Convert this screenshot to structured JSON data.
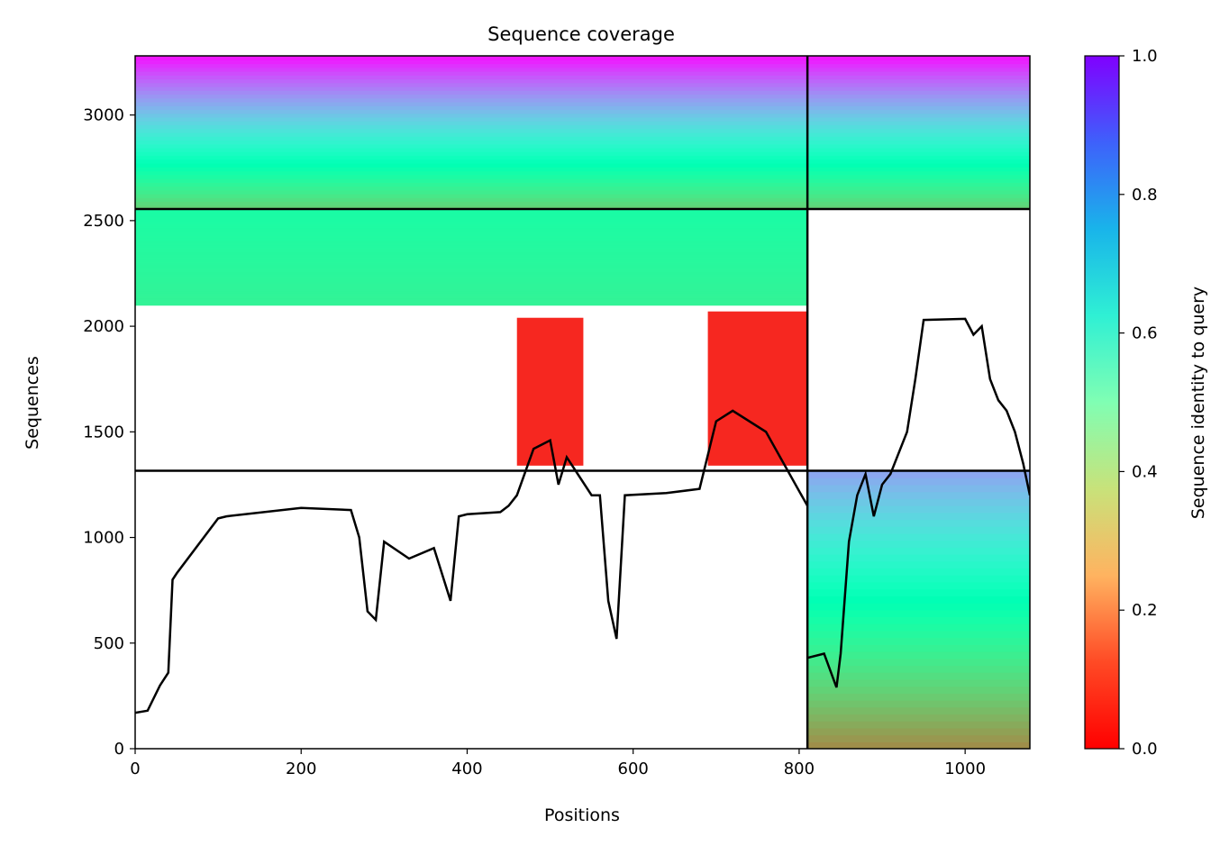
{
  "chart_data": {
    "type": "heatmap",
    "title": "Sequence coverage",
    "xlabel": "Positions",
    "ylabel": "Sequences",
    "xlim": [
      0,
      1078
    ],
    "ylim": [
      0,
      3280
    ],
    "x_ticks": [
      0,
      200,
      400,
      600,
      800,
      1000
    ],
    "y_ticks": [
      0,
      500,
      1000,
      1500,
      2000,
      2500,
      3000
    ],
    "colormap": "rainbow_r",
    "colorbar": {
      "label": "Sequence identity to query",
      "range": [
        0,
        1
      ],
      "ticks": [
        "0.0",
        "0.2",
        "0.4",
        "0.6",
        "0.8",
        "1.0"
      ]
    },
    "separator_lines": {
      "vertical_x": [
        810
      ],
      "horizontal_y": [
        1316,
        2555
      ]
    },
    "blocks": [
      {
        "x0": 0,
        "x1": 810,
        "y0": 2555,
        "y1": 3280,
        "identity_top": 0.98,
        "identity_bottom": 0.3
      },
      {
        "x0": 810,
        "x1": 1078,
        "y0": 2555,
        "y1": 3280,
        "identity_top": 0.98,
        "identity_bottom": 0.3
      },
      {
        "x0": 0,
        "x1": 810,
        "y0": 2100,
        "y1": 2555,
        "identity_top": 0.45,
        "identity_bottom": 0.4
      },
      {
        "x0": 810,
        "x1": 1078,
        "y0": 0,
        "y1": 1316,
        "identity_top": 0.78,
        "identity_bottom": 0.18
      }
    ],
    "red_clusters": [
      {
        "x0": 460,
        "x1": 540,
        "y0": 1340,
        "y1": 2040,
        "identity": 0.02
      },
      {
        "x0": 690,
        "x1": 810,
        "y0": 1340,
        "y1": 2070,
        "identity": 0.02
      }
    ],
    "coverage_line": {
      "segment_1": {
        "x": [
          0,
          15,
          30,
          40,
          45,
          50,
          100,
          110,
          200,
          260,
          270,
          280,
          290,
          300,
          330,
          360,
          380,
          390,
          400,
          440,
          450,
          460,
          480,
          500,
          510,
          520,
          550,
          560,
          570,
          580,
          590,
          640,
          680,
          700,
          720,
          760,
          810
        ],
        "y": [
          170,
          180,
          300,
          360,
          800,
          830,
          1090,
          1100,
          1140,
          1130,
          1000,
          650,
          610,
          980,
          900,
          950,
          700,
          1100,
          1110,
          1120,
          1150,
          1200,
          1420,
          1460,
          1250,
          1380,
          1200,
          1200,
          700,
          520,
          1200,
          1210,
          1230,
          1550,
          1600,
          1500,
          1150
        ]
      },
      "segment_2": {
        "x": [
          810,
          830,
          845,
          850,
          860,
          870,
          880,
          890,
          900,
          910,
          930,
          940,
          950,
          1000,
          1010,
          1020,
          1030,
          1040,
          1050,
          1060,
          1070,
          1078
        ],
        "y": [
          430,
          450,
          290,
          450,
          980,
          1200,
          1300,
          1100,
          1250,
          1300,
          1500,
          1750,
          2030,
          2035,
          1960,
          2000,
          1750,
          1650,
          1600,
          1500,
          1350,
          1200
        ]
      }
    }
  }
}
